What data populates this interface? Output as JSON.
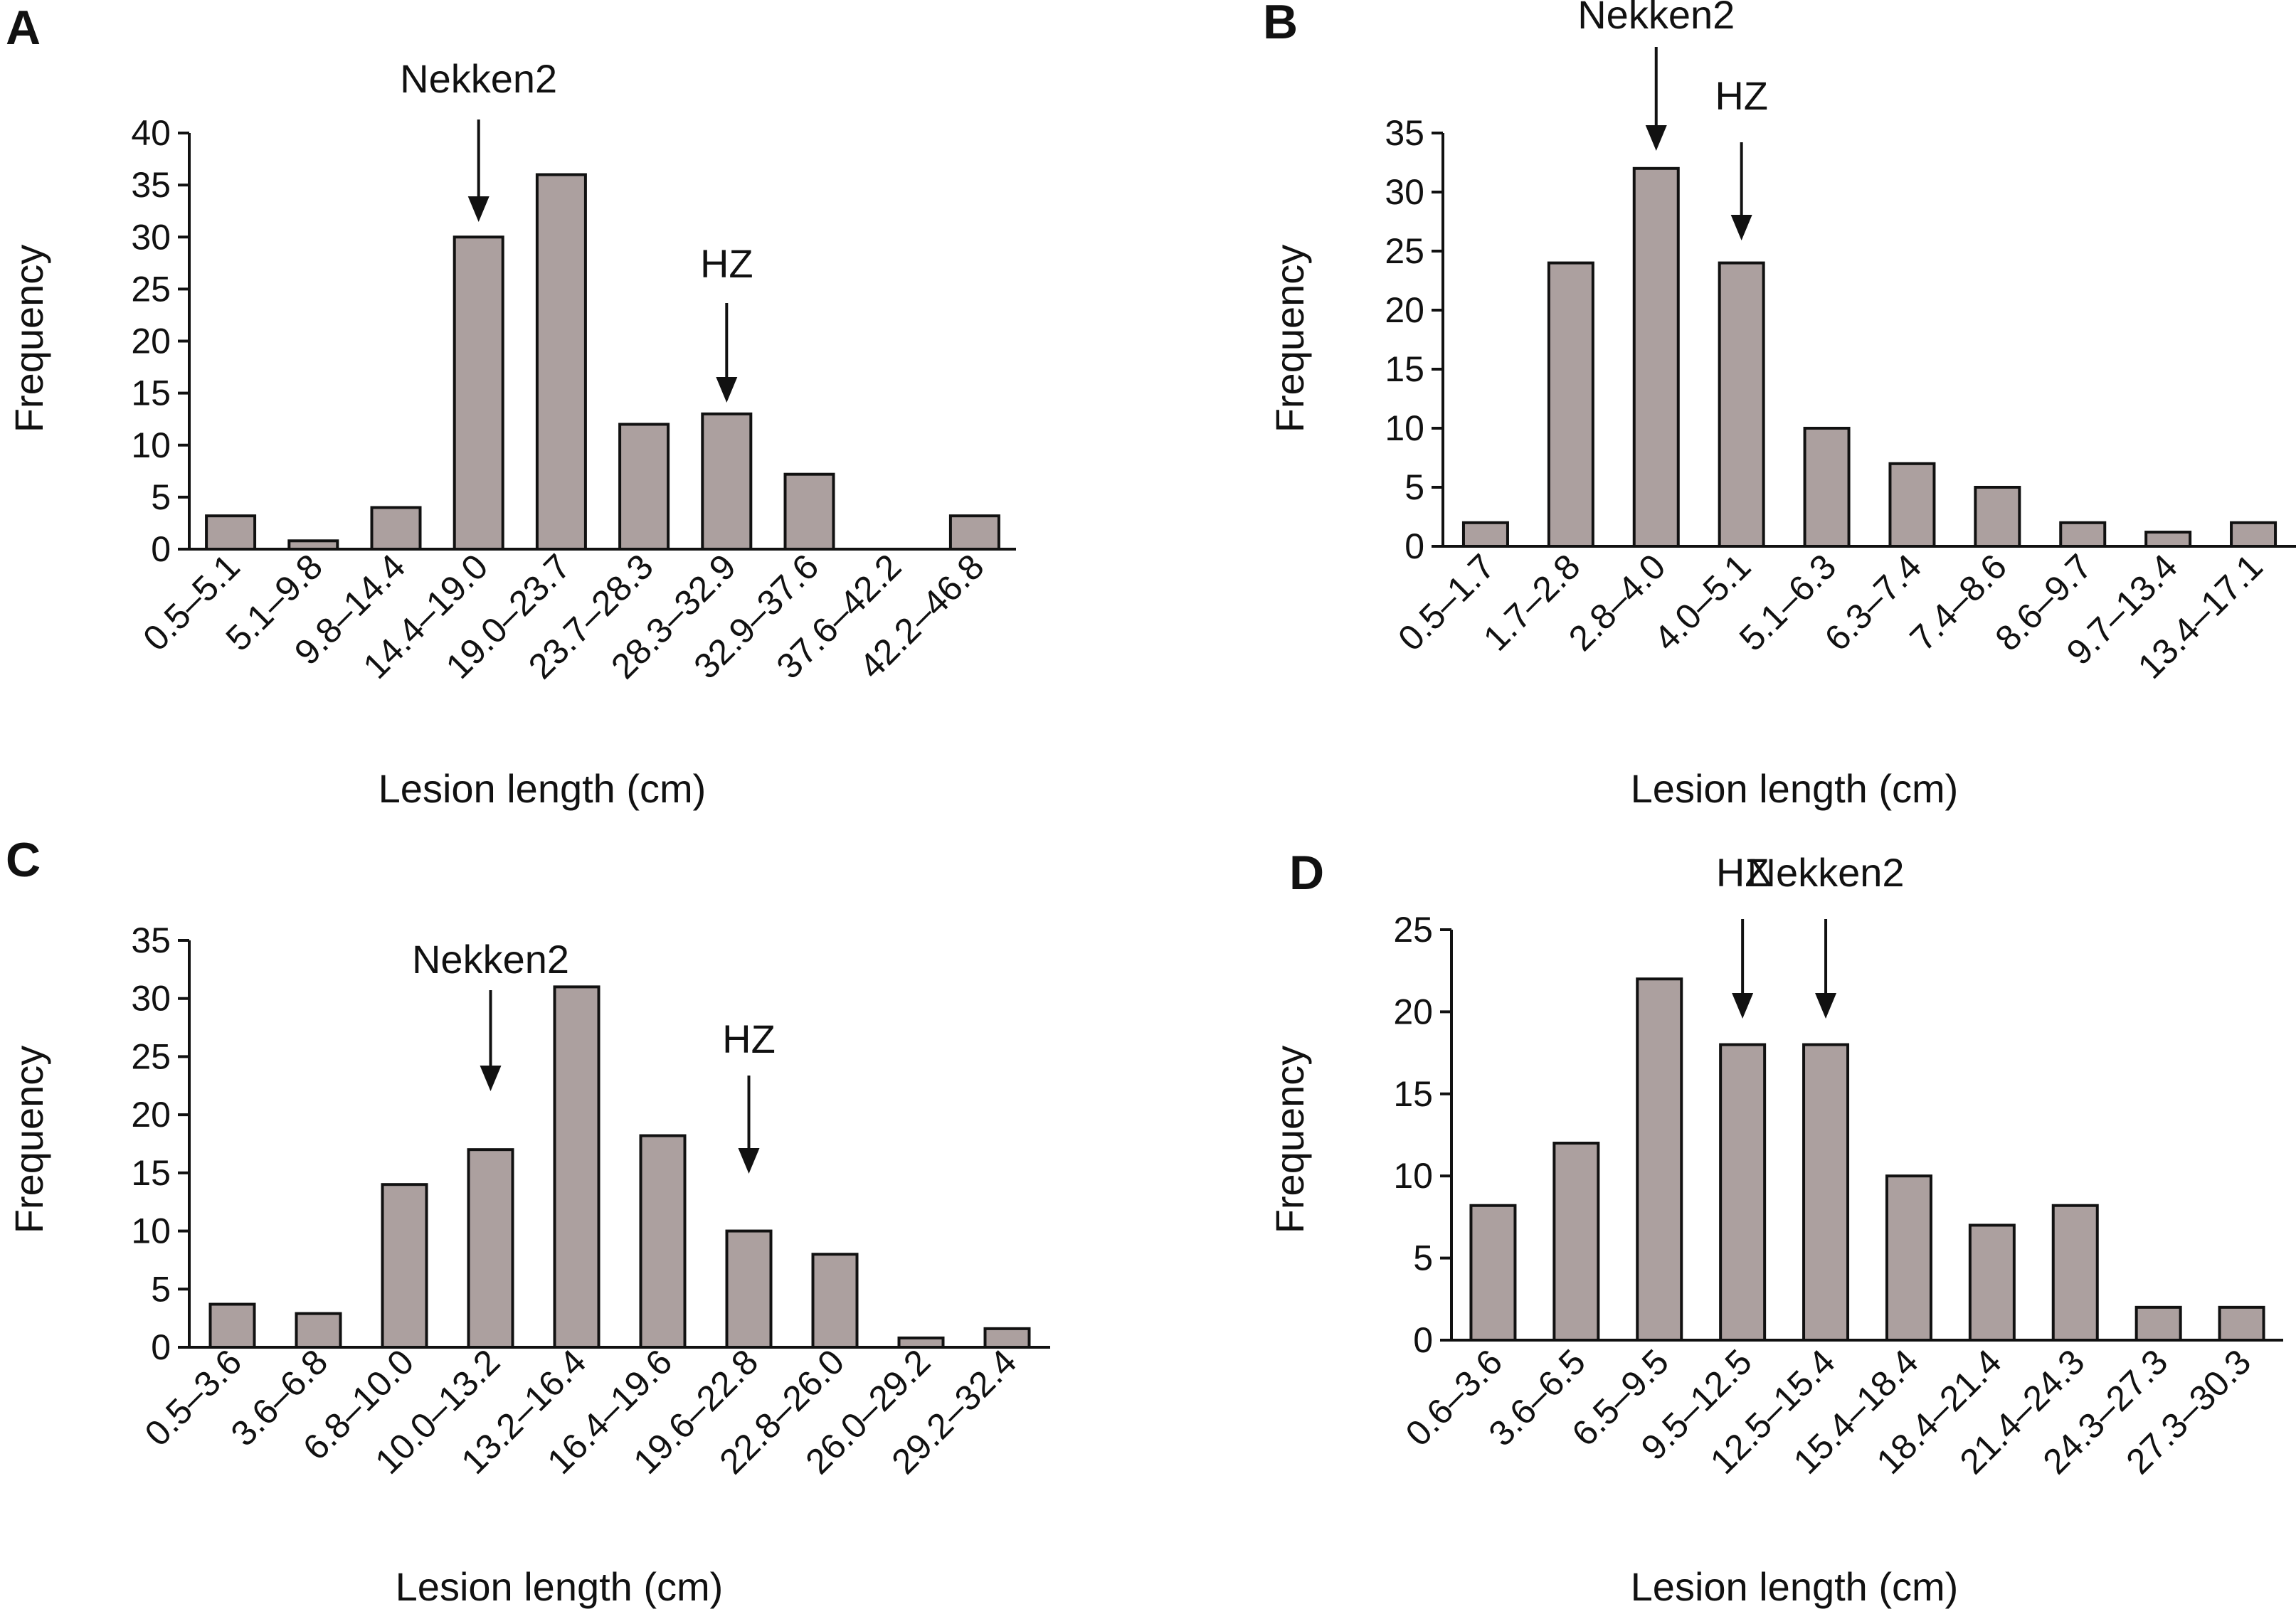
{
  "chart_data": [
    {
      "panel": "A",
      "type": "bar",
      "categories": [
        "0.5–5.1",
        "5.1–9.8",
        "9.8–14.4",
        "14.4–19.0",
        "19.0–23.7",
        "23.7–28.3",
        "28.3–32.9",
        "32.9–37.6",
        "37.6–42.2",
        "42.2–46.8"
      ],
      "values": [
        3.2,
        0.8,
        4.0,
        30,
        36,
        12,
        13,
        7.2,
        0,
        3.2
      ],
      "xlabel": "Lesion length (cm)",
      "ylabel": "Frequency",
      "ylim": [
        0,
        40
      ],
      "yticks": [
        0,
        5,
        10,
        15,
        20,
        25,
        30,
        35,
        40
      ],
      "annotations": [
        {
          "text": "Nekken2",
          "category_index": 3
        },
        {
          "text": "HZ",
          "category_index": 6
        }
      ],
      "bar_color": "#aca09f"
    },
    {
      "panel": "B",
      "type": "bar",
      "categories": [
        "0.5–1.7",
        "1.7–2.8",
        "2.8–4.0",
        "4.0–5.1",
        "5.1–6.3",
        "6.3–7.4",
        "7.4–8.6",
        "8.6–9.7",
        "9.7–13.4",
        "13.4–17.1"
      ],
      "values": [
        2,
        24,
        32,
        24,
        10,
        7,
        5,
        2,
        1.2,
        2
      ],
      "xlabel": "Lesion length (cm)",
      "ylabel": "Frequency",
      "ylim": [
        0,
        35
      ],
      "yticks": [
        0,
        5,
        10,
        15,
        20,
        25,
        30,
        35
      ],
      "annotations": [
        {
          "text": "Nekken2",
          "category_index": 2
        },
        {
          "text": "HZ",
          "category_index": 3
        }
      ],
      "bar_color": "#aca09f"
    },
    {
      "panel": "C",
      "type": "bar",
      "categories": [
        "0.5–3.6",
        "3.6–6.8",
        "6.8–10.0",
        "10.0–13.2",
        "13.2–16.4",
        "16.4–19.6",
        "19.6–22.8",
        "22.8–26.0",
        "26.0–29.2",
        "29.2–32.4"
      ],
      "values": [
        3.7,
        2.9,
        14,
        17,
        31,
        18.2,
        10,
        8,
        0.8,
        1.6
      ],
      "xlabel": "Lesion length (cm)",
      "ylabel": "Frequency",
      "ylim": [
        0,
        35
      ],
      "yticks": [
        0,
        5,
        10,
        15,
        20,
        25,
        30,
        35
      ],
      "annotations": [
        {
          "text": "Nekken2",
          "category_index": 3
        },
        {
          "text": "HZ",
          "category_index": 6
        }
      ],
      "bar_color": "#aca09f"
    },
    {
      "panel": "D",
      "type": "bar",
      "categories": [
        "0.6–3.6",
        "3.6–6.5",
        "6.5–9.5",
        "9.5–12.5",
        "12.5–15.4",
        "15.4–18.4",
        "18.4–21.4",
        "21.4–24.3",
        "24.3–27.3",
        "27.3–30.3"
      ],
      "values": [
        8.2,
        12,
        22,
        18,
        18,
        10,
        7,
        8.2,
        2,
        2
      ],
      "xlabel": "Lesion length (cm)",
      "ylabel": "Frequency",
      "ylim": [
        0,
        25
      ],
      "yticks": [
        0,
        5,
        10,
        15,
        20,
        25
      ],
      "annotations": [
        {
          "text": "HZ",
          "category_index": 3
        },
        {
          "text": "Nekken2",
          "category_index": 4
        }
      ],
      "bar_color": "#aca09f"
    }
  ]
}
